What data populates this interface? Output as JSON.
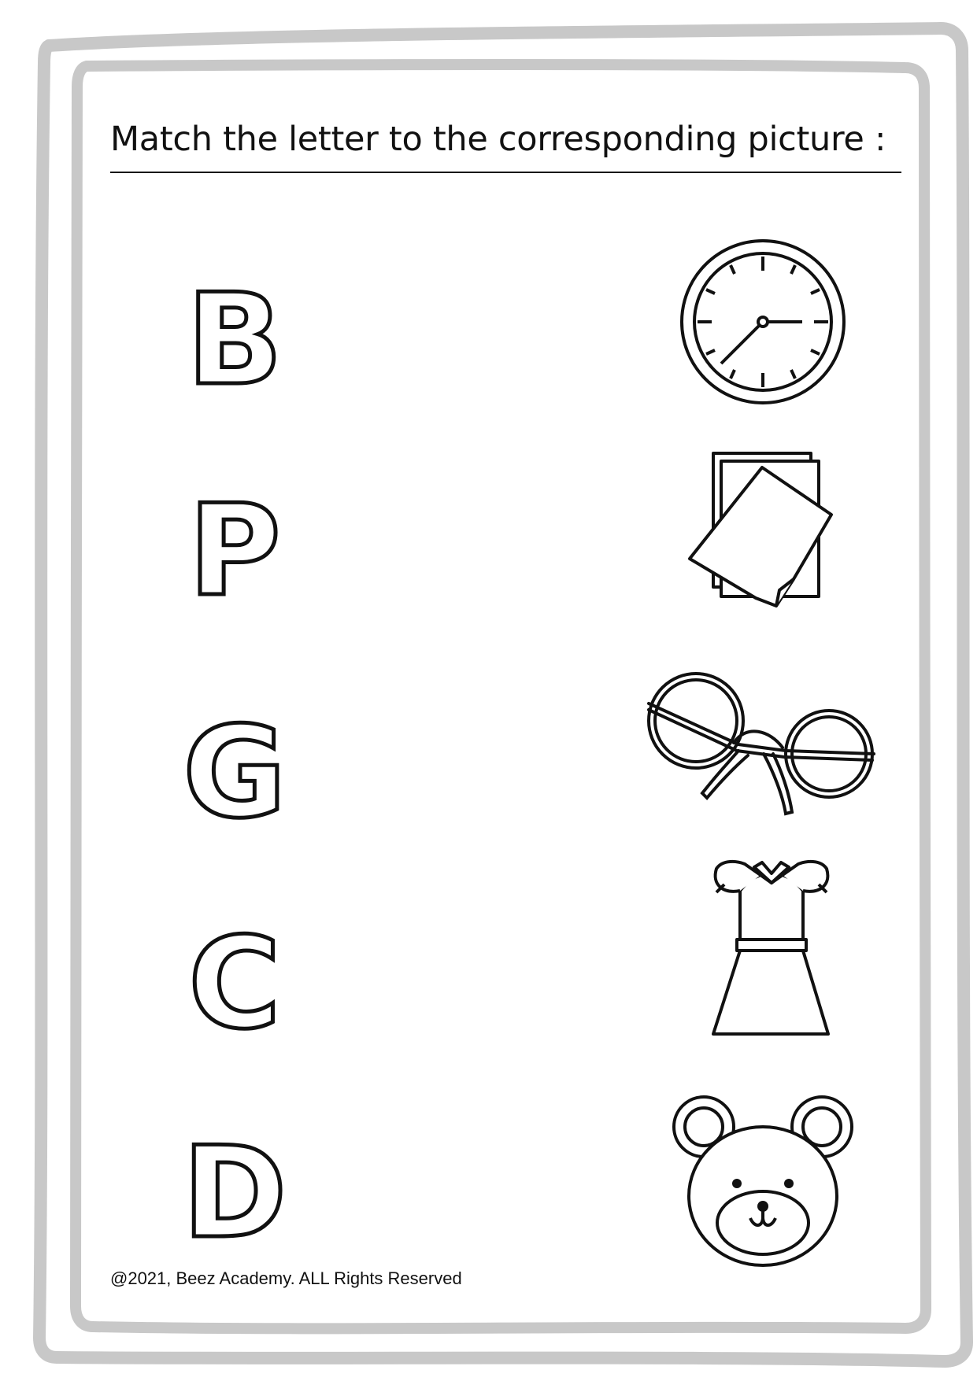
{
  "title": "Match the letter to the corresponding  picture :",
  "letters": [
    {
      "letter": "B"
    },
    {
      "letter": "P"
    },
    {
      "letter": "G"
    },
    {
      "letter": "C"
    },
    {
      "letter": "D"
    }
  ],
  "pictures": [
    {
      "icon": "clock-icon"
    },
    {
      "icon": "paper-icon"
    },
    {
      "icon": "glasses-icon"
    },
    {
      "icon": "dress-icon"
    },
    {
      "icon": "bear-icon"
    }
  ],
  "footer": "@2021, Beez Academy. ALL Rights Reserved",
  "colors": {
    "frame": "#c8c8c8",
    "ink": "#111111"
  }
}
